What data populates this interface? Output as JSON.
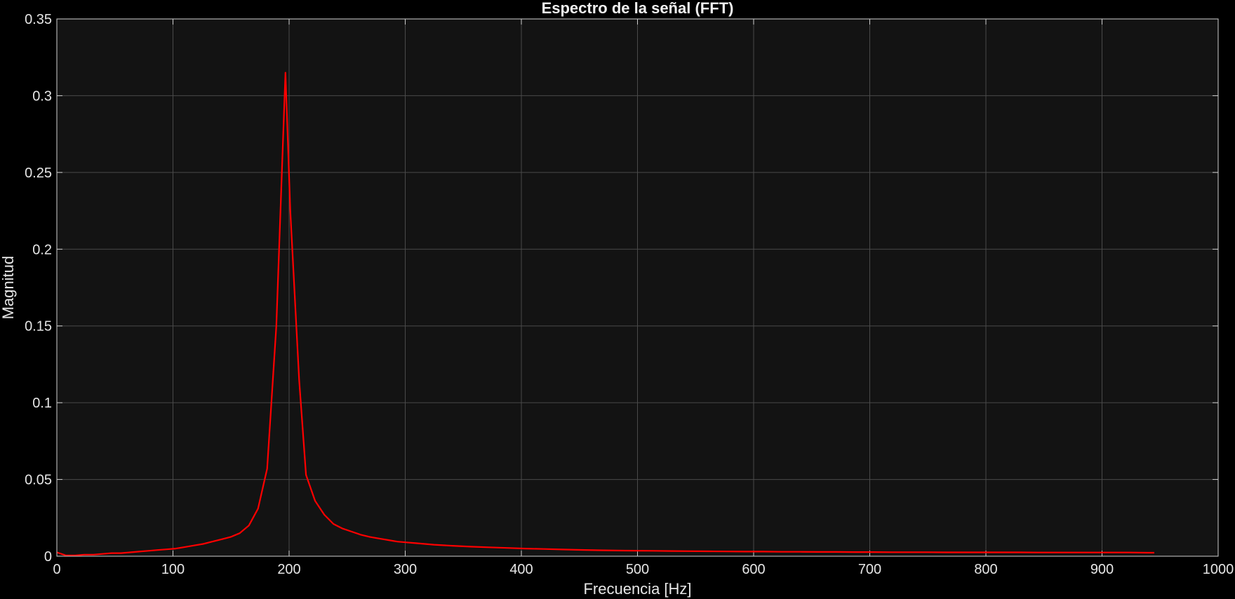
{
  "chart_data": {
    "type": "line",
    "title": "Espectro de la señal (FFT)",
    "xlabel": "Frecuencia [Hz]",
    "ylabel": "Magnitud",
    "xlim": [
      0,
      1000
    ],
    "ylim": [
      0,
      0.35
    ],
    "xticks": [
      "0",
      "100",
      "200",
      "300",
      "400",
      "500",
      "600",
      "700",
      "800",
      "900",
      "1000"
    ],
    "yticks": [
      "0",
      "0.05",
      "0.1",
      "0.15",
      "0.2",
      "0.25",
      "0.3",
      "0.35"
    ],
    "grid": true,
    "background_color": "#131313",
    "figure_color": "#000000",
    "line_color": "#ff0000",
    "series": [
      {
        "x": [
          0,
          7.87,
          15.75,
          23.62,
          31.5,
          39.37,
          47.24,
          55.12,
          62.99,
          70.87,
          78.74,
          86.61,
          94.49,
          102.36,
          110.24,
          118.11,
          125.98,
          133.86,
          141.73,
          149.61,
          157.48,
          165.35,
          173.23,
          181.1,
          188.98,
          196.85,
          201,
          208.66,
          214.57,
          222.44,
          230.31,
          238.19,
          246.06,
          253.94,
          261.81,
          269.69,
          277.56,
          285.43,
          293.31,
          301.18,
          309.06,
          316.93,
          324.8,
          340.55,
          356.3,
          372.05,
          387.8,
          403.54,
          419.29,
          435.04,
          450.79,
          466.54,
          482.28,
          498.03,
          513.78,
          529.53,
          545.28,
          561.02,
          576.77,
          592.52,
          608.27,
          624.02,
          639.76,
          655.51,
          671.26,
          687.01,
          702.76,
          718.5,
          734.25,
          750,
          765.75,
          781.5,
          797.24,
          812.99,
          828.74,
          844.49,
          860.24,
          875.98,
          891.73,
          907.48,
          923.23,
          938.98,
          945
        ],
        "y": [
          0.0025,
          0.0005,
          0.0005,
          0.001,
          0.001,
          0.0015,
          0.002,
          0.002,
          0.0025,
          0.003,
          0.0035,
          0.004,
          0.0045,
          0.005,
          0.006,
          0.007,
          0.008,
          0.0095,
          0.011,
          0.0125,
          0.015,
          0.02,
          0.031,
          0.057,
          0.15,
          0.315,
          0.225,
          0.115,
          0.053,
          0.036,
          0.027,
          0.021,
          0.018,
          0.016,
          0.014,
          0.0125,
          0.0115,
          0.0105,
          0.0095,
          0.009,
          0.0085,
          0.008,
          0.0075,
          0.0068,
          0.0062,
          0.0058,
          0.0054,
          0.005,
          0.0047,
          0.0044,
          0.0041,
          0.0039,
          0.0037,
          0.0036,
          0.0035,
          0.0034,
          0.0033,
          0.0032,
          0.0031,
          0.003,
          0.003,
          0.0029,
          0.0029,
          0.0028,
          0.0028,
          0.0027,
          0.0027,
          0.0026,
          0.0026,
          0.0026,
          0.0025,
          0.0025,
          0.0025,
          0.0025,
          0.0025,
          0.0024,
          0.0024,
          0.0024,
          0.0024,
          0.0024,
          0.0024,
          0.0023,
          0.0023
        ]
      }
    ]
  }
}
